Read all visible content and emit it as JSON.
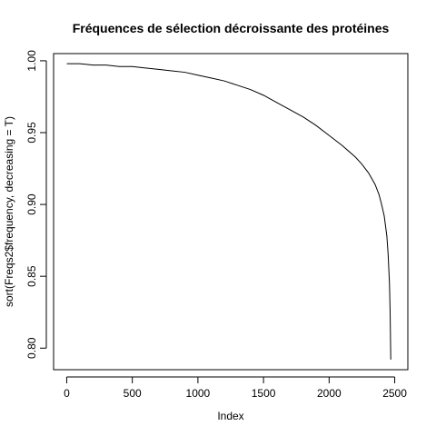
{
  "chart_data": {
    "type": "line",
    "title": "Fréquences de sélection décroissante des protéines",
    "xlabel": "Index",
    "ylabel": "sort(Freqs2$frequency, decreasing = T)",
    "xlim": [
      -100,
      2600
    ],
    "ylim": [
      0.785,
      1.005
    ],
    "x_ticks": [
      0,
      500,
      1000,
      1500,
      2000,
      2500
    ],
    "x_tick_labels": [
      "0",
      "500",
      "1000",
      "1500",
      "2000",
      "2500"
    ],
    "y_ticks": [
      0.8,
      0.85,
      0.9,
      0.95,
      1.0
    ],
    "y_tick_labels": [
      "0.80",
      "0.85",
      "0.90",
      "0.95",
      "1.00"
    ],
    "grid": false,
    "legend": "none",
    "series_color": "#000000",
    "series": [
      {
        "x": [
          1,
          100,
          200,
          300,
          400,
          500,
          600,
          700,
          800,
          900,
          1000,
          1100,
          1200,
          1300,
          1400,
          1500,
          1600,
          1700,
          1800,
          1900,
          2000,
          2100,
          2200,
          2250,
          2300,
          2350,
          2380,
          2400,
          2420,
          2440,
          2450,
          2460,
          2465,
          2470
        ],
        "y": [
          0.998,
          0.998,
          0.997,
          0.997,
          0.996,
          0.996,
          0.995,
          0.994,
          0.993,
          0.992,
          0.99,
          0.988,
          0.986,
          0.983,
          0.98,
          0.976,
          0.971,
          0.966,
          0.961,
          0.955,
          0.948,
          0.941,
          0.933,
          0.928,
          0.922,
          0.914,
          0.907,
          0.9,
          0.892,
          0.878,
          0.865,
          0.845,
          0.825,
          0.792
        ]
      }
    ]
  }
}
